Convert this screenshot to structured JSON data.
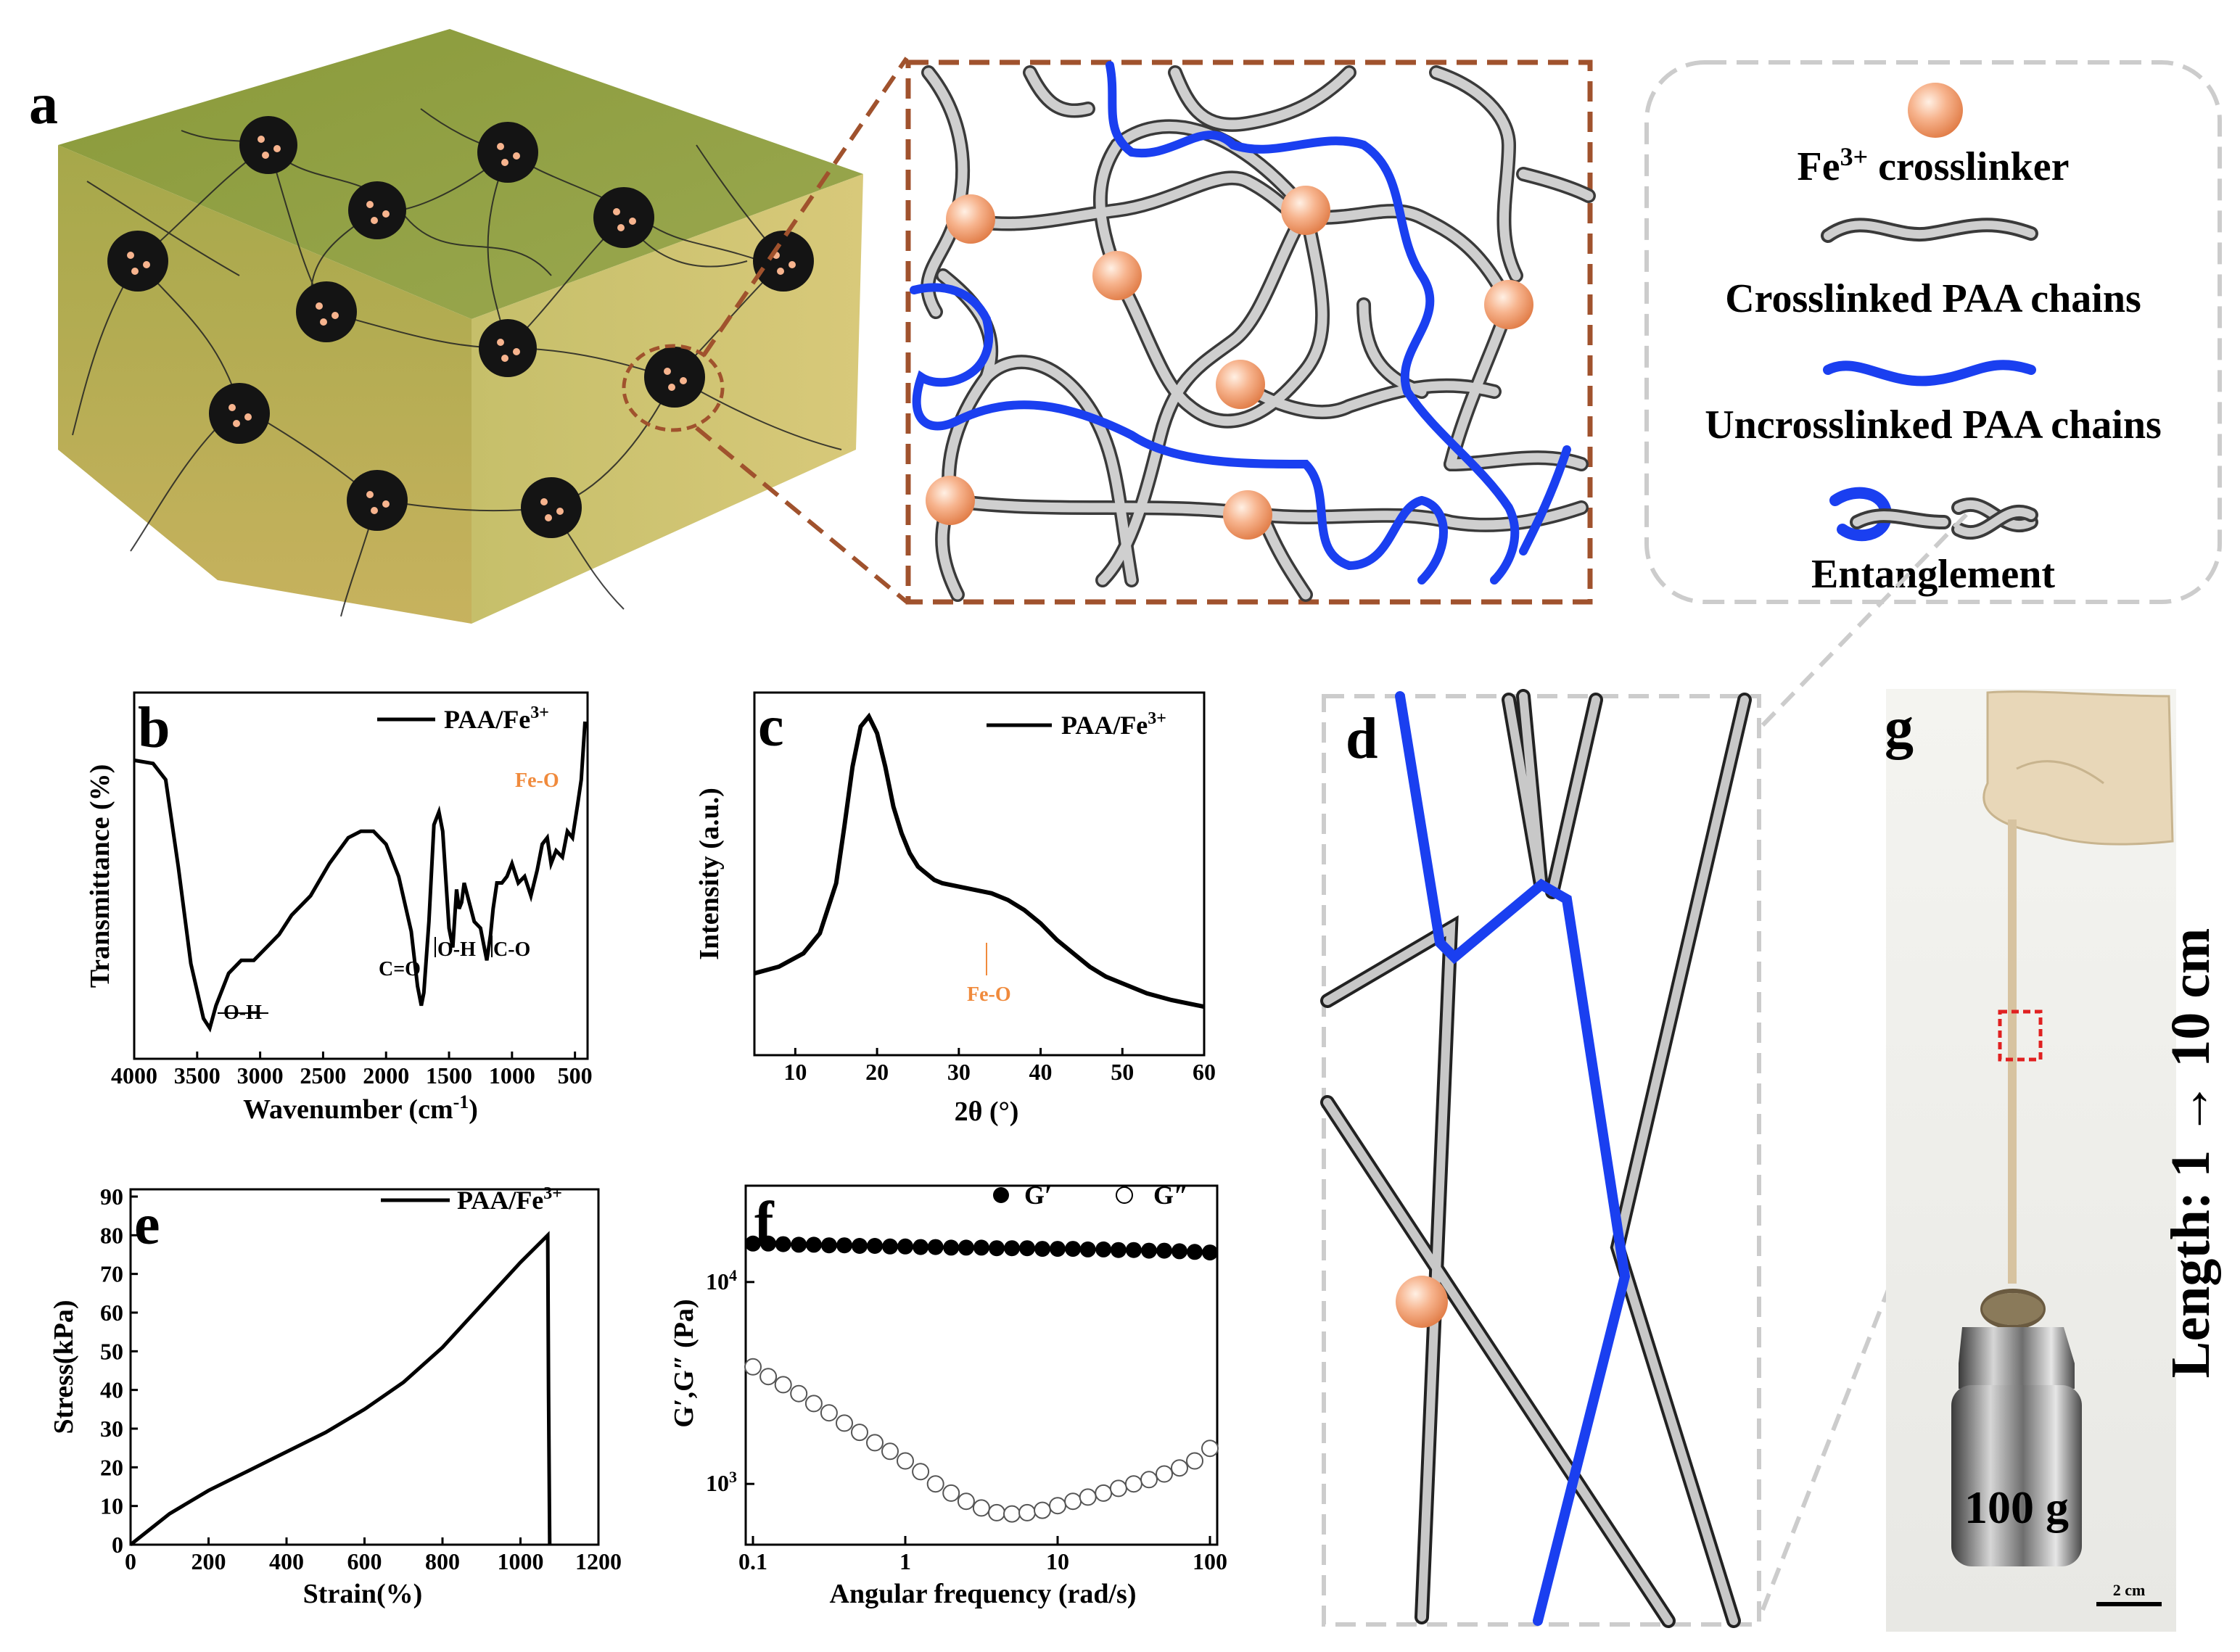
{
  "panels": {
    "a": "a",
    "b": "b",
    "c": "c",
    "d": "d",
    "e": "e",
    "f": "f",
    "g": "g"
  },
  "legend_a": {
    "fe_crosslinker": "Fe",
    "fe_sup": "3+",
    "fe_crosslinker_rest": " crosslinker",
    "crosslinked": "Crosslinked PAA chains",
    "uncrosslinked": "Uncrosslinked PAA chains",
    "entanglement": "Entanglement"
  },
  "colors": {
    "fe_ball": "#f4a27a",
    "crosslinked_chain": "#c8c8c8",
    "uncrosslinked_chain": "#1a3ff0",
    "frame_brown": "#a0522d",
    "anno_orange": "#f08a3c"
  },
  "panel_b": {
    "legend_prefix": "PAA/Fe",
    "legend_sup": "3+",
    "ylabel": "Transmittance (%)",
    "xlabel": "Wavenumber (cm",
    "xlabel_sup": "-1",
    "xlabel_end": ")",
    "ann_fe_o": "Fe-O",
    "ann_oh1": "O-H",
    "ann_co_double": "C=O",
    "ann_oh2": "O-H",
    "ann_co": "C-O"
  },
  "panel_c": {
    "legend_prefix": "PAA/Fe",
    "legend_sup": "3+",
    "ylabel": "Intensity (a.u.)",
    "xlabel": "2θ (°)",
    "ann_fe_o": "Fe-O"
  },
  "panel_e": {
    "legend_prefix": "PAA/Fe",
    "legend_sup": "3+",
    "ylabel": "Stress(kPa)",
    "xlabel": "Strain(%)"
  },
  "panel_f": {
    "legend_g1": "G′",
    "legend_g2": "G″",
    "ylabel": "G′,G″ (Pa)",
    "xlabel": "Angular frequency (rad/s)"
  },
  "panel_g": {
    "weight": "100 g",
    "scale": "2 cm",
    "length": "Length: 1 → 10 cm"
  },
  "chart_data": [
    {
      "panel": "b",
      "type": "line",
      "title": "",
      "xlabel": "Wavenumber (cm-1)",
      "ylabel": "Transmittance (%)",
      "xlim": [
        4000,
        400
      ],
      "x_reversed": true,
      "xticks": [
        4000,
        3500,
        3000,
        2500,
        2000,
        1500,
        1000,
        500
      ],
      "series": [
        {
          "name": "PAA/Fe3+",
          "x": [
            4000,
            3850,
            3750,
            3650,
            3550,
            3450,
            3400,
            3350,
            3250,
            3150,
            3050,
            2950,
            2850,
            2750,
            2600,
            2450,
            2300,
            2200,
            2100,
            2000,
            1900,
            1800,
            1750,
            1720,
            1700,
            1660,
            1620,
            1580,
            1550,
            1500,
            1470,
            1440,
            1420,
            1400,
            1380,
            1340,
            1300,
            1250,
            1200,
            1170,
            1150,
            1120,
            1080,
            1040,
            1000,
            950,
            900,
            850,
            800,
            760,
            720,
            690,
            650,
            600,
            560,
            520,
            480,
            450,
            420
          ],
          "y": [
            88,
            87,
            82,
            55,
            25,
            8,
            5,
            12,
            22,
            26,
            26,
            30,
            34,
            40,
            46,
            56,
            64,
            66,
            66,
            62,
            52,
            35,
            18,
            12,
            16,
            38,
            68,
            72,
            66,
            36,
            30,
            48,
            42,
            44,
            50,
            44,
            38,
            36,
            26,
            34,
            42,
            50,
            50,
            52,
            56,
            50,
            52,
            46,
            54,
            62,
            64,
            56,
            60,
            58,
            66,
            64,
            74,
            82,
            100
          ]
        }
      ]
    },
    {
      "panel": "c",
      "type": "line",
      "xlabel": "2θ (°)",
      "ylabel": "Intensity (a.u.)",
      "xlim": [
        5,
        60
      ],
      "xticks": [
        10,
        20,
        30,
        40,
        50,
        60
      ],
      "series": [
        {
          "name": "PAA/Fe3+",
          "x": [
            5,
            8,
            11,
            13,
            15,
            16,
            17,
            18,
            19,
            20,
            21,
            22,
            23,
            24,
            25,
            26,
            27,
            28,
            30,
            32,
            34,
            36,
            38,
            40,
            42,
            44,
            46,
            48,
            50,
            53,
            56,
            60
          ],
          "y": [
            18,
            20,
            24,
            30,
            45,
            62,
            80,
            92,
            95,
            90,
            80,
            68,
            60,
            54,
            50,
            48,
            46,
            45,
            44,
            43,
            42,
            40,
            37,
            33,
            28,
            24,
            20,
            17,
            15,
            12,
            10,
            8
          ]
        }
      ]
    },
    {
      "panel": "e",
      "type": "line",
      "xlabel": "Strain(%)",
      "ylabel": "Stress(kPa)",
      "xlim": [
        0,
        1200
      ],
      "ylim": [
        0,
        90
      ],
      "xticks": [
        0,
        200,
        400,
        600,
        800,
        1000,
        1200
      ],
      "yticks": [
        0,
        10,
        20,
        30,
        40,
        50,
        60,
        70,
        80,
        90
      ],
      "series": [
        {
          "name": "PAA/Fe3+",
          "x": [
            0,
            100,
            200,
            300,
            400,
            500,
            600,
            700,
            800,
            900,
            1000,
            1070,
            1072,
            1075
          ],
          "y": [
            0,
            8,
            14,
            19,
            24,
            29,
            35,
            42,
            51,
            62,
            73,
            80,
            40,
            0
          ]
        }
      ]
    },
    {
      "panel": "f",
      "type": "scatter",
      "xlabel": "Angular frequency (rad/s)",
      "ylabel": "G′,G″ (Pa)",
      "xscale": "log",
      "yscale": "log",
      "xlim": [
        0.1,
        100
      ],
      "ylim": [
        500,
        30000
      ],
      "xticks": [
        0.1,
        1,
        10,
        100
      ],
      "yticks": [
        1000,
        10000
      ],
      "series": [
        {
          "name": "G′",
          "marker": "filled",
          "x": [
            0.1,
            0.126,
            0.158,
            0.2,
            0.251,
            0.316,
            0.398,
            0.501,
            0.631,
            0.794,
            1,
            1.26,
            1.58,
            2,
            2.51,
            3.16,
            3.98,
            5.01,
            6.31,
            7.94,
            10,
            12.6,
            15.8,
            20,
            25.1,
            31.6,
            39.8,
            50.1,
            63.1,
            79.4,
            100
          ],
          "y": [
            15500,
            15500,
            15400,
            15300,
            15300,
            15200,
            15200,
            15100,
            15100,
            15000,
            15000,
            14900,
            14900,
            14800,
            14800,
            14800,
            14700,
            14700,
            14700,
            14600,
            14600,
            14600,
            14500,
            14500,
            14400,
            14400,
            14300,
            14300,
            14200,
            14100,
            14000
          ]
        },
        {
          "name": "G″",
          "marker": "open",
          "x": [
            0.1,
            0.126,
            0.158,
            0.2,
            0.251,
            0.316,
            0.398,
            0.501,
            0.631,
            0.794,
            1,
            1.26,
            1.58,
            2,
            2.51,
            3.16,
            3.98,
            5.01,
            6.31,
            7.94,
            10,
            12.6,
            15.8,
            20,
            25.1,
            31.6,
            39.8,
            50.1,
            63.1,
            79.4,
            100
          ],
          "y": [
            3800,
            3400,
            3100,
            2800,
            2500,
            2250,
            2000,
            1800,
            1600,
            1450,
            1300,
            1150,
            1000,
            900,
            820,
            760,
            720,
            710,
            720,
            740,
            780,
            820,
            860,
            900,
            950,
            1000,
            1050,
            1120,
            1200,
            1300,
            1500
          ]
        }
      ]
    }
  ]
}
